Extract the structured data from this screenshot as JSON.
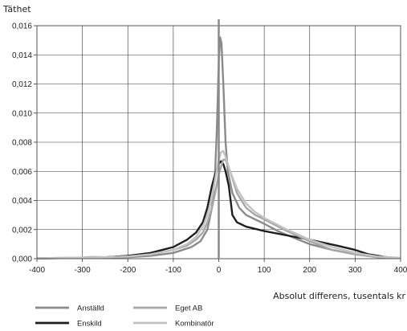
{
  "chart_data": {
    "type": "line",
    "title": "",
    "ylabel": "Täthet",
    "xlabel": "Absolut differens, tusentals kr",
    "xlim": [
      -400,
      400
    ],
    "ylim": [
      0,
      0.016
    ],
    "xticks": [
      -400,
      -300,
      -200,
      -100,
      0,
      100,
      200,
      300,
      400
    ],
    "yticks": [
      0,
      0.002,
      0.004,
      0.006,
      0.008,
      0.01,
      0.012,
      0.014,
      0.016
    ],
    "ytick_labels": [
      "0,000",
      "0,002",
      "0,004",
      "0,006",
      "0,008",
      "0,010",
      "0,012",
      "0,014",
      "0,016"
    ],
    "xtick_labels": [
      "-400",
      "-300",
      "-200",
      "-100",
      "0",
      "100",
      "200",
      "300",
      "400"
    ],
    "grid": true,
    "legend_position": "bottom",
    "series": [
      {
        "name": "Anställd",
        "color": "#8a8a8a",
        "points": [
          [
            -400,
            3e-05
          ],
          [
            -300,
            5e-05
          ],
          [
            -200,
            0.0001
          ],
          [
            -150,
            0.0002
          ],
          [
            -100,
            0.0004
          ],
          [
            -60,
            0.0008
          ],
          [
            -40,
            0.0012
          ],
          [
            -25,
            0.002
          ],
          [
            -15,
            0.0035
          ],
          [
            -8,
            0.006
          ],
          [
            -4,
            0.009
          ],
          [
            0,
            0.0135
          ],
          [
            3,
            0.0152
          ],
          [
            6,
            0.0148
          ],
          [
            10,
            0.012
          ],
          [
            15,
            0.008
          ],
          [
            20,
            0.006
          ],
          [
            30,
            0.0045
          ],
          [
            45,
            0.0035
          ],
          [
            60,
            0.003
          ],
          [
            80,
            0.0027
          ],
          [
            100,
            0.0024
          ],
          [
            130,
            0.0019
          ],
          [
            160,
            0.0015
          ],
          [
            200,
            0.001
          ],
          [
            250,
            0.0006
          ],
          [
            300,
            0.0003
          ],
          [
            350,
            0.0001
          ],
          [
            400,
            4e-05
          ]
        ]
      },
      {
        "name": "Enskild",
        "color": "#1e1e1e",
        "points": [
          [
            -400,
            3e-05
          ],
          [
            -300,
            5e-05
          ],
          [
            -250,
            0.0001
          ],
          [
            -200,
            0.0002
          ],
          [
            -150,
            0.0004
          ],
          [
            -100,
            0.0008
          ],
          [
            -70,
            0.0013
          ],
          [
            -50,
            0.0018
          ],
          [
            -35,
            0.0025
          ],
          [
            -25,
            0.0035
          ],
          [
            -15,
            0.005
          ],
          [
            -8,
            0.0058
          ],
          [
            0,
            0.0065
          ],
          [
            5,
            0.0067
          ],
          [
            10,
            0.0065
          ],
          [
            15,
            0.006
          ],
          [
            22,
            0.005
          ],
          [
            30,
            0.003
          ],
          [
            40,
            0.0025
          ],
          [
            60,
            0.0022
          ],
          [
            100,
            0.0019
          ],
          [
            150,
            0.0016
          ],
          [
            200,
            0.0013
          ],
          [
            230,
            0.0011
          ],
          [
            260,
            0.0009
          ],
          [
            300,
            0.0006
          ],
          [
            330,
            0.0003
          ],
          [
            370,
            0.0001
          ],
          [
            400,
            4e-05
          ]
        ]
      },
      {
        "name": "Eget AB",
        "color": "#a6a6a6",
        "points": [
          [
            -400,
            3e-05
          ],
          [
            -300,
            8e-05
          ],
          [
            -280,
            0.00012
          ],
          [
            -250,
            0.0001
          ],
          [
            -200,
            0.00015
          ],
          [
            -150,
            0.0003
          ],
          [
            -100,
            0.0006
          ],
          [
            -70,
            0.0009
          ],
          [
            -50,
            0.0013
          ],
          [
            -35,
            0.0018
          ],
          [
            -25,
            0.0025
          ],
          [
            -15,
            0.0035
          ],
          [
            -8,
            0.0045
          ],
          [
            0,
            0.0058
          ],
          [
            5,
            0.0063
          ],
          [
            10,
            0.0068
          ],
          [
            15,
            0.0068
          ],
          [
            25,
            0.006
          ],
          [
            40,
            0.0045
          ],
          [
            60,
            0.0035
          ],
          [
            80,
            0.003
          ],
          [
            100,
            0.0027
          ],
          [
            150,
            0.0019
          ],
          [
            200,
            0.0012
          ],
          [
            250,
            0.0006
          ],
          [
            300,
            0.0003
          ],
          [
            350,
            0.0001
          ],
          [
            400,
            4e-05
          ]
        ]
      },
      {
        "name": "Kombinatör",
        "color": "#c2c2c2",
        "points": [
          [
            -400,
            3e-05
          ],
          [
            -300,
            8e-05
          ],
          [
            -250,
            0.0001
          ],
          [
            -200,
            0.00015
          ],
          [
            -150,
            0.0003
          ],
          [
            -100,
            0.0006
          ],
          [
            -70,
            0.001
          ],
          [
            -50,
            0.0015
          ],
          [
            -35,
            0.0022
          ],
          [
            -25,
            0.003
          ],
          [
            -15,
            0.0042
          ],
          [
            -8,
            0.0055
          ],
          [
            0,
            0.0068
          ],
          [
            5,
            0.0073
          ],
          [
            10,
            0.0074
          ],
          [
            15,
            0.007
          ],
          [
            25,
            0.006
          ],
          [
            40,
            0.0048
          ],
          [
            60,
            0.0038
          ],
          [
            80,
            0.0032
          ],
          [
            100,
            0.0028
          ],
          [
            150,
            0.002
          ],
          [
            200,
            0.0013
          ],
          [
            250,
            0.0008
          ],
          [
            300,
            0.0004
          ],
          [
            350,
            0.00015
          ],
          [
            400,
            5e-05
          ]
        ]
      }
    ]
  }
}
